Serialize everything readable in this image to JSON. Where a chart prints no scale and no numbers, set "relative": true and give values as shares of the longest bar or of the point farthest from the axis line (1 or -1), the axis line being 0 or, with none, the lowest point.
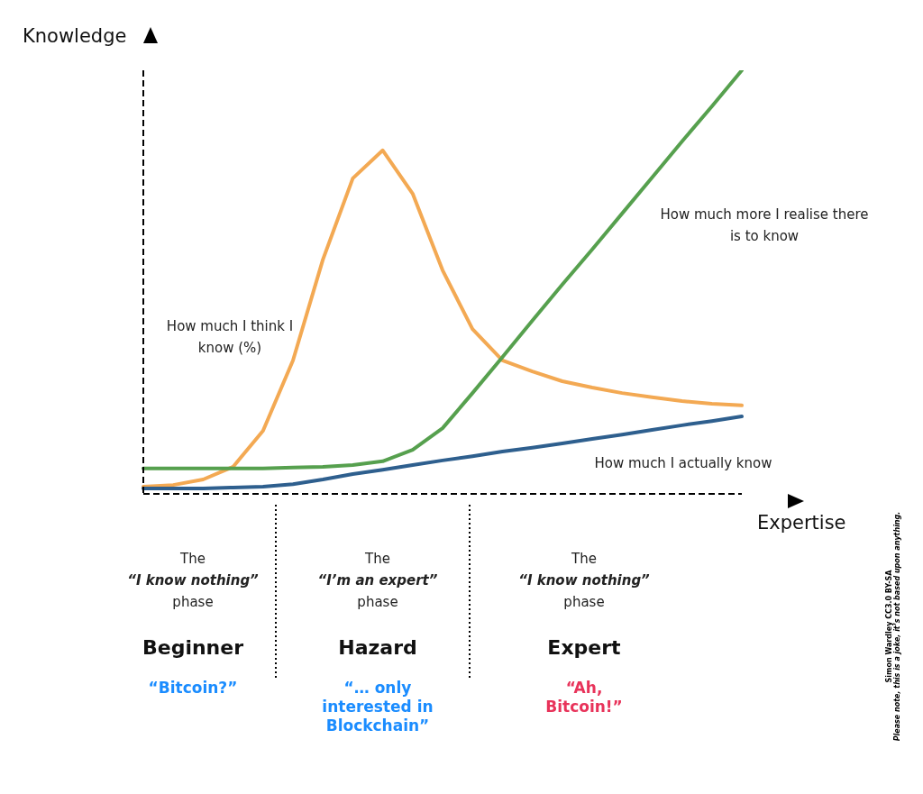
{
  "chart_data": {
    "type": "line",
    "relative": true,
    "xlabel": "Expertise",
    "ylabel": "Knowledge",
    "legend": false,
    "grid": false,
    "marker": "none",
    "line_style": "solid",
    "categories": [
      null,
      null,
      null,
      null,
      null,
      null,
      null,
      null,
      null,
      null,
      null,
      null,
      null,
      null,
      null,
      null,
      null,
      null,
      null,
      null,
      null
    ],
    "series": [
      {
        "name": "How much I think I know (%)",
        "color": "#f3a953",
        "values": [
          0.017,
          0.021,
          0.034,
          0.064,
          0.149,
          0.315,
          0.553,
          0.745,
          0.811,
          0.709,
          0.528,
          0.389,
          0.315,
          0.289,
          0.266,
          0.251,
          0.238,
          0.228,
          0.219,
          0.213,
          0.209
        ]
      },
      {
        "name": "How much more I realise there is to know",
        "color": "#56a04e",
        "values": [
          0.06,
          0.06,
          0.06,
          0.06,
          0.06,
          0.062,
          0.064,
          0.068,
          0.077,
          0.104,
          0.155,
          0.238,
          0.323,
          0.409,
          0.494,
          0.577,
          0.662,
          0.747,
          0.832,
          0.915,
          1
        ]
      },
      {
        "name": "How much I actually know",
        "color": "#2e5f8e",
        "values": [
          0.013,
          0.013,
          0.013,
          0.015,
          0.017,
          0.023,
          0.034,
          0.047,
          0.057,
          0.068,
          0.079,
          0.089,
          0.1,
          0.109,
          0.119,
          0.13,
          0.14,
          0.151,
          0.162,
          0.172,
          0.183
        ]
      }
    ],
    "annotations": [
      "The\n“I know nothing”\nphase",
      "The\n“I’m an expert”\nphase",
      "The\n“I know nothing”\nphase",
      "Beginner",
      "Hazard",
      "Expert",
      "“Bitcoin?”",
      "“… only\ninterested in\nBlockchain”",
      "“Ah,\nBitcoin!”",
      "Simon Wardley CC3.0 BY-SA\nPlease note, this is a joke, it’s not based upon anything."
    ]
  }
}
